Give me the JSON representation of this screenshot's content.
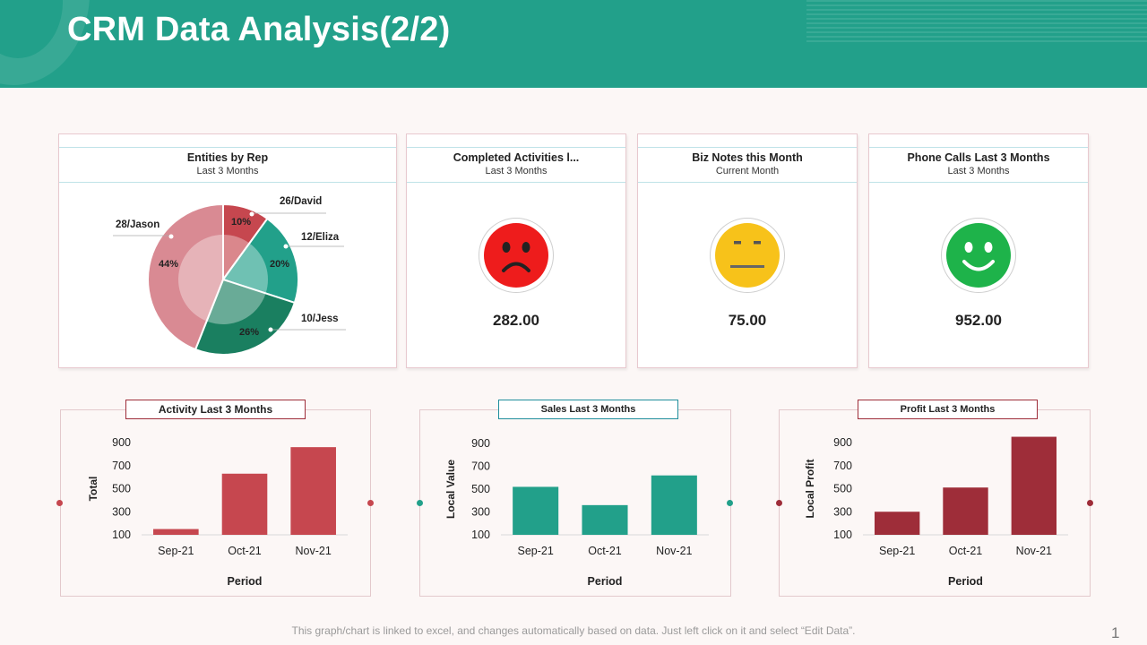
{
  "header": {
    "title": "CRM Data Analysis(2/2)"
  },
  "colors": {
    "teal": "#22a08a",
    "crimson": "#c6474f",
    "maroon": "#9e2d39",
    "pink": "#d98a93",
    "red_face": "#ee1c1c",
    "yellow_face": "#f7c21a",
    "green_face": "#1eb34a"
  },
  "cards": {
    "entities": {
      "title": "Entities by Rep",
      "subtitle": "Last 3 Months"
    },
    "activities": {
      "title": "Completed Activities l...",
      "subtitle": "Last 3 Months",
      "value": "282.00",
      "face": "sad-face-icon"
    },
    "notes": {
      "title": "Biz Notes this Month",
      "subtitle": "Current Month",
      "value": "75.00",
      "face": "neutral-face-icon"
    },
    "calls": {
      "title": "Phone Calls Last 3 Months",
      "subtitle": "Last 3 Months",
      "value": "952.00",
      "face": "happy-face-icon"
    }
  },
  "chart_data": [
    {
      "type": "pie",
      "title": "Entities by Rep",
      "slices": [
        {
          "label": "26/David",
          "percent_label": "10%",
          "value": 10,
          "color": "#c6474f"
        },
        {
          "label": "12/Eliza",
          "percent_label": "20%",
          "value": 20,
          "color": "#22a08a"
        },
        {
          "label": "10/Jess",
          "percent_label": "26%",
          "value": 26,
          "color": "#1a7f60"
        },
        {
          "label": "28/Jason",
          "percent_label": "44%",
          "value": 44,
          "color": "#d98a93"
        }
      ]
    },
    {
      "type": "bar",
      "title": "Activity Last 3 Months",
      "categories": [
        "Sep-21",
        "Oct-21",
        "Nov-21"
      ],
      "values": [
        150,
        630,
        860
      ],
      "xlabel": "Period",
      "ylabel": "Total",
      "yticks": [
        100,
        300,
        500,
        700,
        900
      ],
      "ylim": [
        100,
        900
      ],
      "color": "#c6474f"
    },
    {
      "type": "bar",
      "title": "Sales Last 3 Months",
      "categories": [
        "Sep-21",
        "Oct-21",
        "Nov-21"
      ],
      "values": [
        520,
        360,
        620
      ],
      "xlabel": "Period",
      "ylabel": "Local Value",
      "yticks": [
        100,
        300,
        500,
        700,
        900
      ],
      "ylim": [
        100,
        900
      ],
      "color": "#22a08a"
    },
    {
      "type": "bar",
      "title": "Profit Last 3 Months",
      "categories": [
        "Sep-21",
        "Oct-21",
        "Nov-21"
      ],
      "values": [
        300,
        510,
        950
      ],
      "xlabel": "Period",
      "ylabel": "Local Profit",
      "yticks": [
        100,
        300,
        500,
        700,
        900
      ],
      "ylim": [
        100,
        900
      ],
      "color": "#9e2d39"
    }
  ],
  "footer": {
    "note": "This graph/chart is linked to excel, and changes automatically based on data. Just left click on it and select “Edit Data”.",
    "page": "1"
  }
}
